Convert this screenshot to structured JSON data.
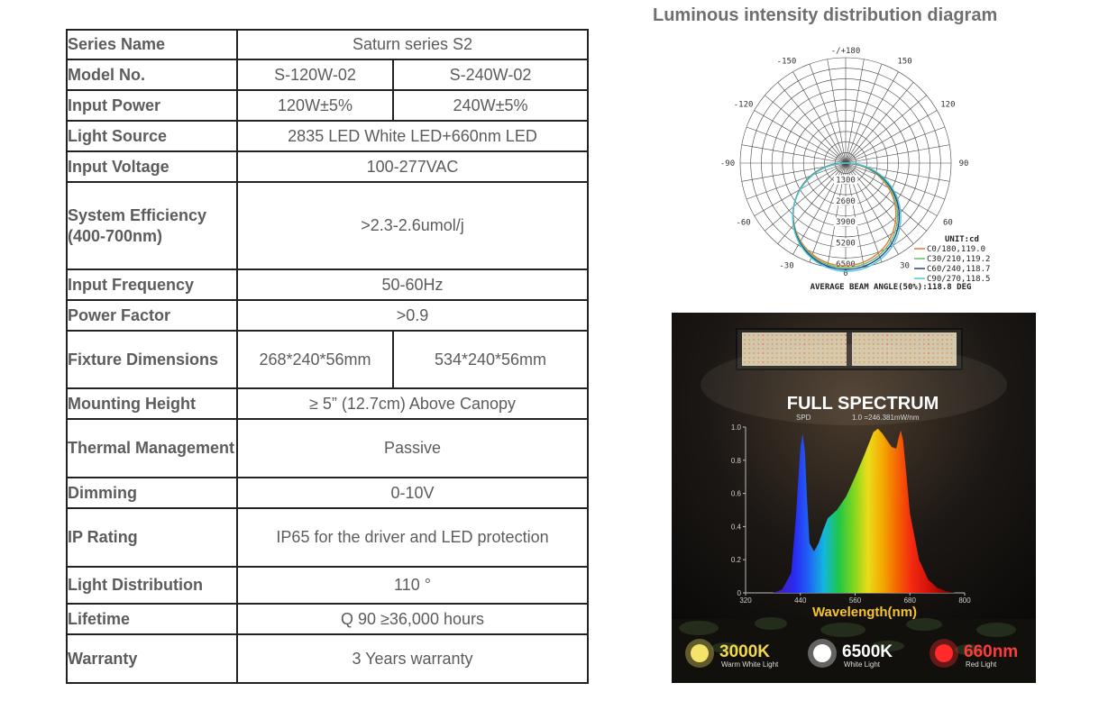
{
  "spec_table": {
    "rows": [
      {
        "label": "Series Name",
        "values": [
          "Saturn series S2"
        ]
      },
      {
        "label": "Model No.",
        "values": [
          "S-120W-02",
          "S-240W-02"
        ]
      },
      {
        "label": "Input Power",
        "values": [
          "120W±5%",
          "240W±5%"
        ]
      },
      {
        "label": "Light Source",
        "values": [
          "2835 LED White LED+660nm LED"
        ]
      },
      {
        "label": "Input Voltage",
        "values": [
          "100-277VAC"
        ]
      },
      {
        "label": "System Efficiency (400-700nm)",
        "values": [
          ">2.3-2.6umol/j"
        ]
      },
      {
        "label": "Input Frequency",
        "values": [
          "50-60Hz"
        ]
      },
      {
        "label": "Power Factor",
        "values": [
          ">0.9"
        ]
      },
      {
        "label": "Fixture Dimensions",
        "values": [
          "268*240*56mm",
          "534*240*56mm"
        ]
      },
      {
        "label": "Mounting Height",
        "values": [
          "≥ 5” (12.7cm) Above Canopy"
        ]
      },
      {
        "label": "Thermal Management",
        "values": [
          "Passive"
        ]
      },
      {
        "label": "Dimming",
        "values": [
          "0-10V"
        ]
      },
      {
        "label": "IP Rating",
        "values": [
          "IP65 for the driver and LED protection"
        ]
      },
      {
        "label": "Light Distribution",
        "values": [
          "110 °"
        ]
      },
      {
        "label": "Lifetime",
        "values": [
          "Q 90 ≥36,000 hours"
        ]
      },
      {
        "label": "Warranty",
        "values": [
          "3 Years warranty"
        ]
      }
    ]
  },
  "chart_data": [
    {
      "type": "polar",
      "title": "Luminous intensity distribution diagram",
      "angle_labels": [
        "-/+180",
        "150",
        "120",
        "90",
        "60",
        "30",
        "0",
        "-30",
        "-60",
        "-90",
        "-120",
        "-150"
      ],
      "radial_ticks": [
        "1300",
        "2600",
        "3900",
        "5200",
        "6500"
      ],
      "unit_label": "UNIT:cd",
      "footer": "AVERAGE BEAM ANGLE(50%):118.8 DEG",
      "series": [
        {
          "name": "C0/180,119.0",
          "color": "#e07a3a"
        },
        {
          "name": "C30/210,119.2",
          "color": "#5bc26a"
        },
        {
          "name": "C60/240,118.7",
          "color": "#2b3f8f"
        },
        {
          "name": "C90/270,118.5",
          "color": "#4ec9d6"
        }
      ]
    },
    {
      "type": "area",
      "title": "FULL SPECTRUM",
      "subtitle_left": "SPD",
      "subtitle_right": "1.0 =246.381mW/nm",
      "xlabel": "Wavelength(nm)",
      "x_ticks": [
        "320",
        "440",
        "560",
        "680",
        "800"
      ],
      "y_ticks": [
        "0",
        "0.2",
        "0.4",
        "0.6",
        "0.8",
        "1.0"
      ],
      "xlim": [
        320,
        800
      ],
      "ylim": [
        0,
        1.0
      ],
      "x": [
        380,
        400,
        420,
        430,
        440,
        445,
        450,
        455,
        460,
        470,
        480,
        490,
        500,
        520,
        540,
        560,
        580,
        590,
        600,
        610,
        620,
        630,
        640,
        650,
        655,
        660,
        665,
        670,
        680,
        700,
        720,
        740,
        760,
        780
      ],
      "values": [
        0.0,
        0.02,
        0.12,
        0.45,
        0.88,
        0.96,
        0.85,
        0.55,
        0.3,
        0.25,
        0.3,
        0.38,
        0.45,
        0.5,
        0.58,
        0.7,
        0.83,
        0.9,
        0.97,
        0.99,
        0.96,
        0.92,
        0.88,
        0.87,
        0.93,
        0.98,
        0.92,
        0.78,
        0.48,
        0.2,
        0.08,
        0.03,
        0.01,
        0.0
      ]
    }
  ],
  "legend_badges": [
    {
      "value": "3000K",
      "label": "Warm White Light",
      "color": "#f5e46a",
      "text_color": "#f3d94a"
    },
    {
      "value": "6500K",
      "label": "White Light",
      "color": "#ffffff",
      "text_color": "#ffffff"
    },
    {
      "value": "660nm",
      "label": "Red Light",
      "color": "#ff2a2a",
      "text_color": "#ff3b3b"
    }
  ]
}
